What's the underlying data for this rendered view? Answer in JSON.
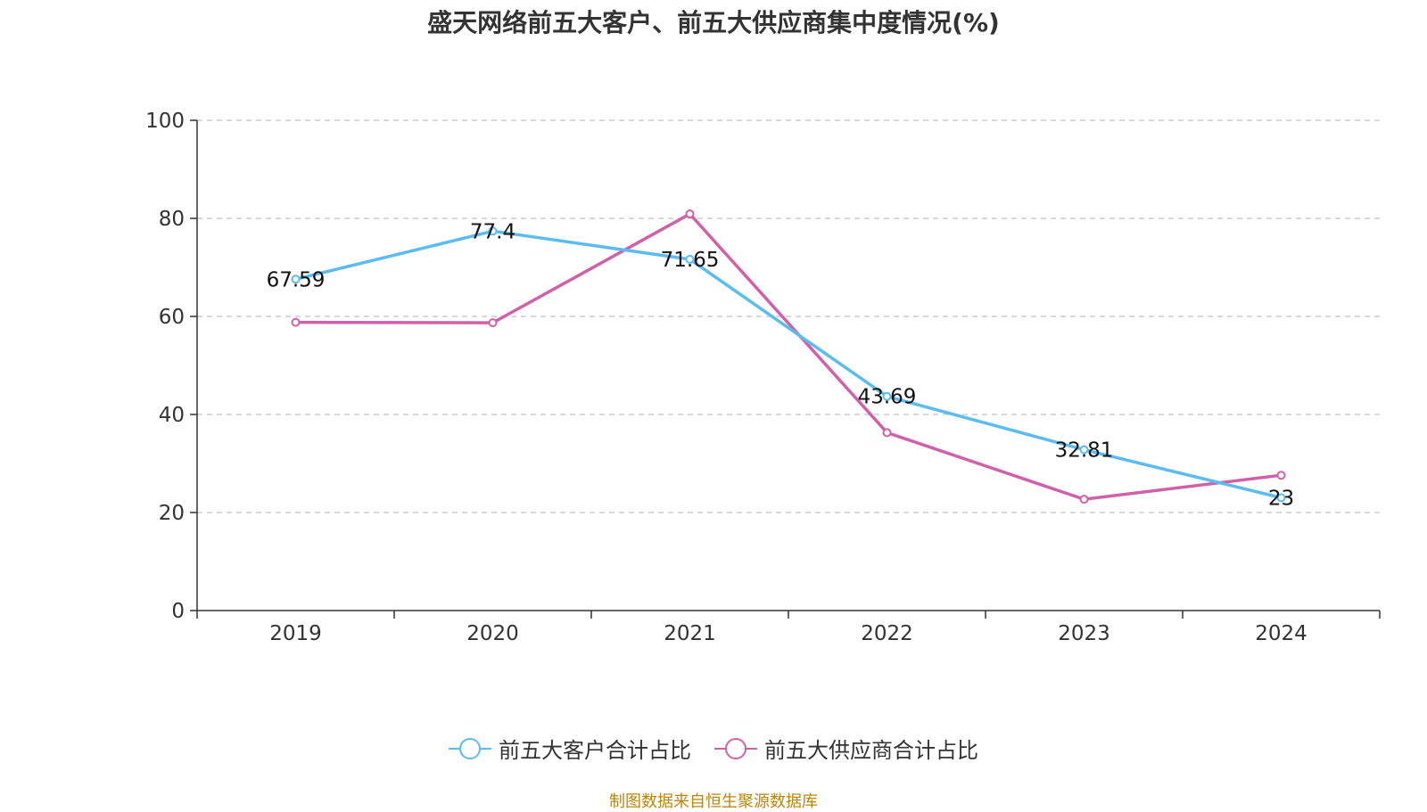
{
  "chart_data": {
    "type": "line",
    "title": "盛天网络前五大客户、前五大供应商集中度情况(%)",
    "categories": [
      "2019",
      "2020",
      "2021",
      "2022",
      "2023",
      "2024"
    ],
    "ylim": [
      0,
      100
    ],
    "yticks": [
      0,
      20,
      40,
      60,
      80,
      100
    ],
    "series": [
      {
        "name": "前五大客户合计占比",
        "color": "#5bbcf0",
        "values": [
          67.59,
          77.4,
          71.65,
          43.69,
          32.81,
          23
        ],
        "labels": [
          "67.59",
          "77.4",
          "71.65",
          "43.69",
          "32.81",
          "23"
        ]
      },
      {
        "name": "前五大供应商合计占比",
        "color": "#d060a8",
        "values": [
          58.8,
          58.7,
          80.9,
          36.3,
          22.7,
          27.6
        ]
      }
    ],
    "legend_position": "bottom",
    "grid": true
  },
  "source": "制图数据来自恒生聚源数据库"
}
